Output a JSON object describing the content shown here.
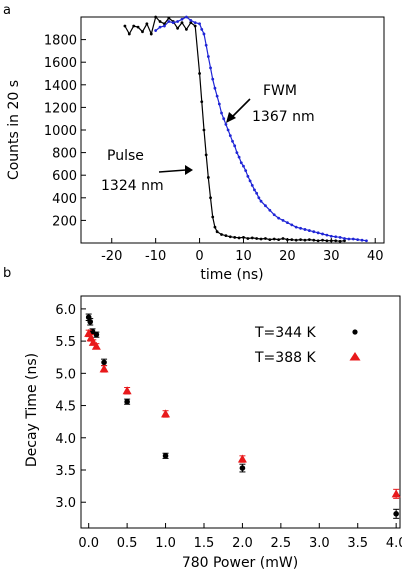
{
  "chart_data": [
    {
      "panel_label": "a",
      "type": "line",
      "xlabel": "time (ns)",
      "ylabel": "Counts in 20 s",
      "xlim": [
        -27,
        42
      ],
      "ylim": [
        0,
        2000
      ],
      "x_ticks": [
        -20,
        -10,
        0,
        10,
        20,
        30,
        40
      ],
      "y_ticks": [
        200,
        400,
        600,
        800,
        1000,
        1200,
        1400,
        1600,
        1800
      ],
      "grid": false,
      "series": [
        {
          "color": "#000000",
          "x": [
            -17,
            -16,
            -15,
            -14,
            -13,
            -12,
            -11,
            -10,
            -9,
            -8,
            -7,
            -6,
            -5,
            -4,
            -3,
            -2,
            -1,
            0,
            0.5,
            1,
            1.5,
            2,
            2.5,
            3,
            3.5,
            4,
            5,
            6,
            7,
            8,
            9,
            10,
            11,
            12,
            13,
            14,
            15,
            16,
            17,
            18,
            19,
            20,
            21,
            22,
            23,
            24,
            25,
            26,
            27,
            28,
            29,
            30,
            31,
            32,
            33
          ],
          "y": [
            1920,
            1850,
            1920,
            1910,
            1870,
            1940,
            1850,
            2000,
            1960,
            1940,
            1990,
            1960,
            1900,
            1950,
            1890,
            1950,
            1920,
            1500,
            1250,
            1000,
            780,
            580,
            400,
            230,
            140,
            100,
            75,
            65,
            55,
            50,
            45,
            50,
            40,
            45,
            40,
            35,
            40,
            30,
            35,
            30,
            40,
            30,
            30,
            25,
            30,
            25,
            30,
            25,
            20,
            25,
            20,
            20,
            20,
            15,
            20
          ]
        },
        {
          "color": "#1f25d6",
          "x": [
            -10,
            -9,
            -8,
            -7,
            -6,
            -5,
            -4,
            -3,
            -2,
            -1,
            0,
            0.5,
            1,
            1.5,
            2,
            2.5,
            3,
            3.5,
            4,
            4.5,
            5,
            5.5,
            6,
            6.5,
            7,
            7.5,
            8,
            8.5,
            9,
            9.5,
            10,
            10.5,
            11,
            11.5,
            12,
            12.5,
            13,
            13.5,
            14,
            15,
            16,
            17,
            18,
            19,
            20,
            21,
            22,
            23,
            24,
            25,
            26,
            27,
            28,
            29,
            30,
            31,
            32,
            33,
            34,
            35,
            36,
            37,
            38
          ],
          "y": [
            1880,
            1910,
            1920,
            1960,
            1950,
            1960,
            1980,
            2000,
            1970,
            1950,
            1940,
            1890,
            1850,
            1750,
            1650,
            1550,
            1450,
            1370,
            1300,
            1230,
            1150,
            1100,
            1050,
            1000,
            950,
            900,
            860,
            800,
            760,
            710,
            680,
            640,
            590,
            550,
            510,
            470,
            440,
            400,
            370,
            330,
            290,
            250,
            220,
            200,
            180,
            160,
            140,
            130,
            120,
            110,
            100,
            90,
            80,
            70,
            60,
            55,
            50,
            40,
            35,
            35,
            30,
            25,
            20
          ]
        }
      ],
      "annotations": {
        "fwm": "FWM",
        "fwm_wavelength": "1367 nm",
        "pulse": "Pulse",
        "pulse_wavelength": "1324 nm"
      }
    },
    {
      "panel_label": "b",
      "type": "scatter",
      "xlabel": "780 Power (mW)",
      "ylabel": "Decay Time (ns)",
      "xlim": [
        -0.1,
        4.05
      ],
      "ylim": [
        2.6,
        6.2
      ],
      "x_ticks": [
        "0.0",
        "0.5",
        "1.0",
        "1.5",
        "2.0",
        "2.5",
        "3.0",
        "3.5",
        "4.0"
      ],
      "y_ticks": [
        "3.0",
        "3.5",
        "4.0",
        "4.5",
        "5.0",
        "5.5",
        "6.0"
      ],
      "grid": false,
      "legend_position": "top-right",
      "series": [
        {
          "name": "T=344 K",
          "color": "#000000",
          "marker": "circle",
          "x": [
            0.0,
            0.02,
            0.05,
            0.1,
            0.2,
            0.5,
            1.0,
            2.0,
            4.0
          ],
          "y": [
            5.87,
            5.8,
            5.65,
            5.6,
            5.17,
            4.56,
            3.72,
            3.53,
            2.82
          ],
          "err": [
            0.05,
            0.05,
            0.04,
            0.04,
            0.05,
            0.04,
            0.04,
            0.06,
            0.07
          ]
        },
        {
          "name": "T=388 K",
          "color": "#e8191b",
          "marker": "triangle",
          "x": [
            0.0,
            0.03,
            0.06,
            0.1,
            0.2,
            0.5,
            1.0,
            2.0,
            4.0
          ],
          "y": [
            5.62,
            5.55,
            5.48,
            5.42,
            5.07,
            4.73,
            4.37,
            3.67,
            3.13
          ],
          "err": [
            0.05,
            0.05,
            0.04,
            0.04,
            0.05,
            0.05,
            0.05,
            0.05,
            0.07
          ]
        }
      ]
    }
  ]
}
